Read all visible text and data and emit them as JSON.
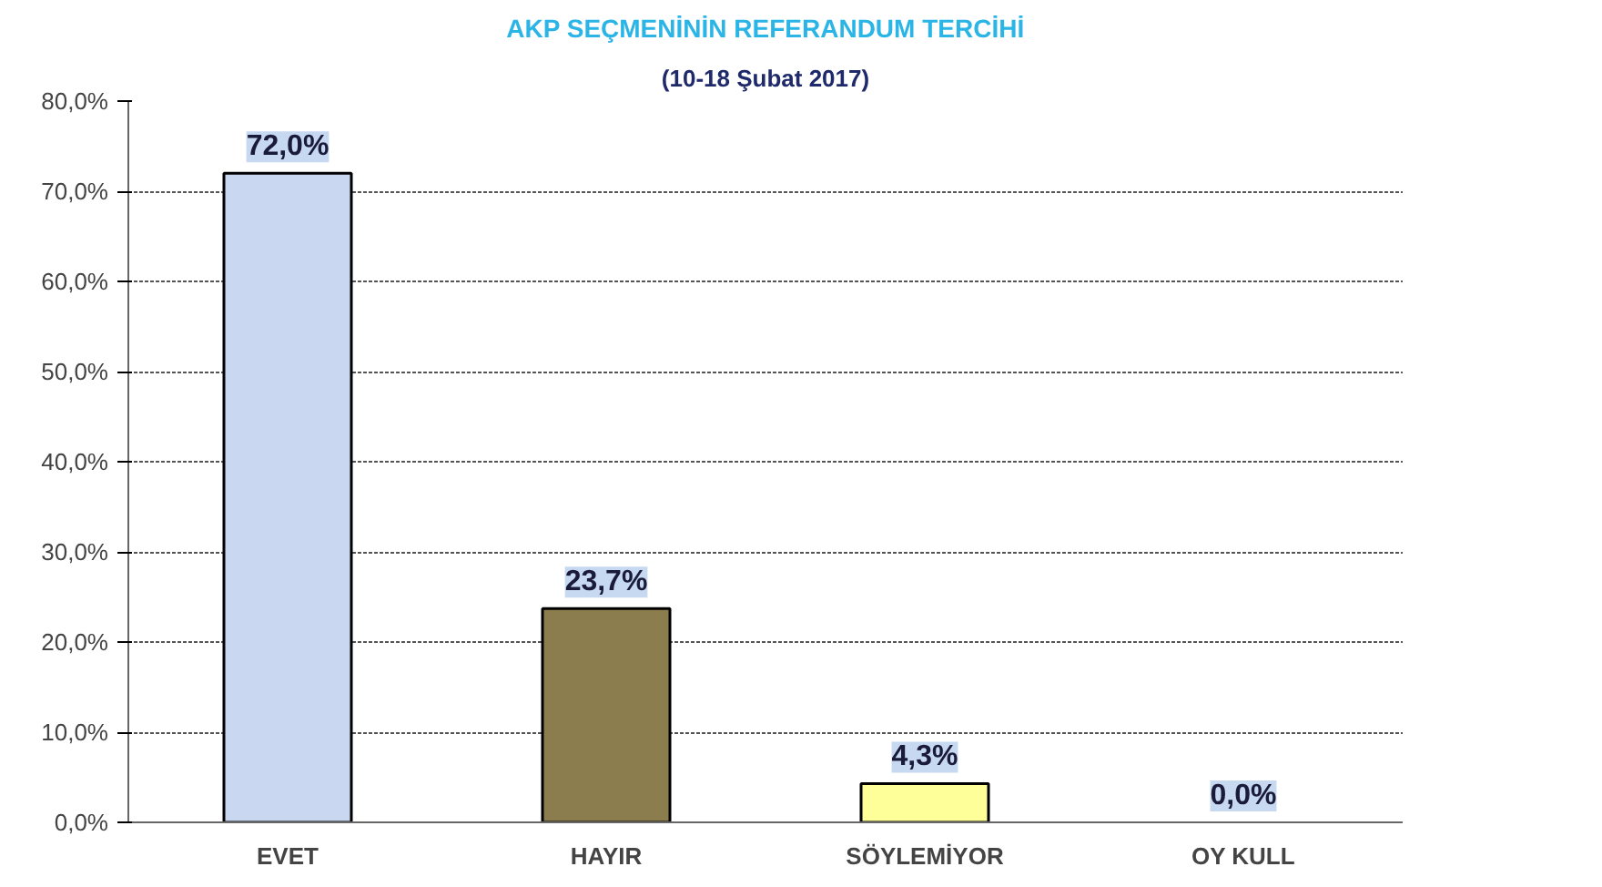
{
  "chart_data": {
    "type": "bar",
    "title": "AKP SEÇMENİNİN REFERANDUM TERCİHİ",
    "subtitle": "(10-18 Şubat 2017)",
    "categories": [
      "EVET",
      "HAYIR",
      "SÖYLEMİYOR",
      "OY KULL"
    ],
    "values": [
      72.0,
      23.7,
      4.3,
      0.0
    ],
    "colors": [
      "#c9d8f0",
      "#8c7d4e",
      "#ffff99",
      "#ffffff"
    ],
    "value_labels": [
      "72,0%",
      "23,7%",
      "4,3%",
      "0,0%"
    ],
    "ylim": [
      0,
      80
    ],
    "yticks": [
      {
        "value": 0,
        "label": "0,0%"
      },
      {
        "value": 10,
        "label": "10,0%"
      },
      {
        "value": 20,
        "label": "20,0%"
      },
      {
        "value": 30,
        "label": "30,0%"
      },
      {
        "value": 40,
        "label": "40,0%"
      },
      {
        "value": 50,
        "label": "50,0%"
      },
      {
        "value": 60,
        "label": "60,0%"
      },
      {
        "value": 70,
        "label": "70,0%"
      },
      {
        "value": 80,
        "label": "80,0%"
      }
    ],
    "grid": "y"
  }
}
